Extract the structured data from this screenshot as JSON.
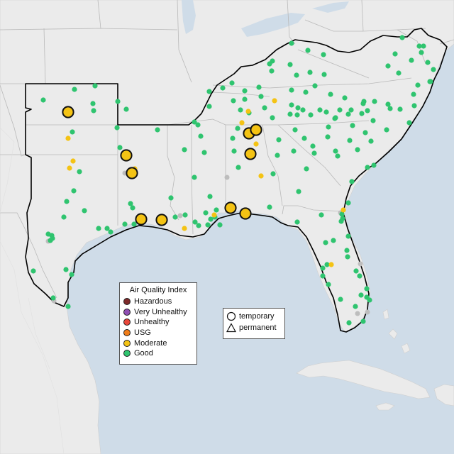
{
  "legend": {
    "title": "Air Quality Index",
    "categories": [
      {
        "label": "Hazardous",
        "color": "#7e2a2a"
      },
      {
        "label": "Very Unhealthy",
        "color": "#8f4fb3"
      },
      {
        "label": "Unhealthy",
        "color": "#e8473a"
      },
      {
        "label": "USG",
        "color": "#f07d1a"
      },
      {
        "label": "Moderate",
        "color": "#f4c314"
      },
      {
        "label": "Good",
        "color": "#2fc46f"
      }
    ]
  },
  "monitor_types": {
    "temporary": "temporary",
    "permanent": "permanent"
  },
  "colors": {
    "water": "#cfdce8",
    "land": "#ebebeb",
    "state_borders": "#b9b9b9",
    "region_outline": "#000000",
    "inactive_monitor": "#bdbdbd"
  }
}
